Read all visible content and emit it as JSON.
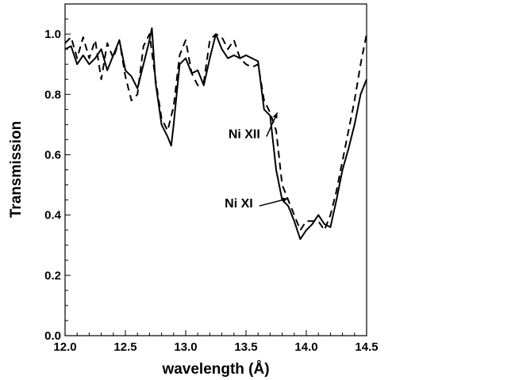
{
  "chart_data": {
    "type": "line",
    "xlabel": "wavelength (Å)",
    "ylabel": "Transmission",
    "xlim": [
      12.0,
      14.5
    ],
    "ylim": [
      0.0,
      1.1
    ],
    "x_ticks": [
      12.0,
      12.5,
      13.0,
      13.5,
      14.0,
      14.5
    ],
    "x_tick_labels": [
      "12.0",
      "12.5",
      "13.0",
      "13.5",
      "14.0",
      "14.5"
    ],
    "y_ticks": [
      0.0,
      0.2,
      0.4,
      0.6,
      0.8,
      1.0
    ],
    "y_tick_labels": [
      "0.0",
      "0.2",
      "0.4",
      "0.6",
      "0.8",
      "1.0"
    ],
    "grid": false,
    "legend": "none",
    "series": [
      {
        "style": "solid",
        "color": "#000000",
        "x": [
          12.0,
          12.05,
          12.1,
          12.15,
          12.2,
          12.25,
          12.3,
          12.35,
          12.4,
          12.45,
          12.5,
          12.55,
          12.6,
          12.65,
          12.7,
          12.72,
          12.75,
          12.8,
          12.85,
          12.88,
          12.9,
          12.95,
          13.0,
          13.05,
          13.1,
          13.15,
          13.2,
          13.25,
          13.3,
          13.35,
          13.4,
          13.45,
          13.5,
          13.55,
          13.6,
          13.65,
          13.7,
          13.75,
          13.8,
          13.85,
          13.9,
          13.95,
          14.0,
          14.05,
          14.1,
          14.15,
          14.2,
          14.25,
          14.3,
          14.35,
          14.4,
          14.45,
          14.5
        ],
        "y": [
          0.95,
          0.96,
          0.9,
          0.93,
          0.9,
          0.92,
          0.95,
          0.88,
          0.93,
          0.98,
          0.88,
          0.86,
          0.82,
          0.9,
          0.98,
          1.02,
          0.84,
          0.7,
          0.66,
          0.63,
          0.7,
          0.9,
          0.92,
          0.87,
          0.88,
          0.83,
          0.92,
          1.0,
          0.95,
          0.92,
          0.93,
          0.92,
          0.93,
          0.92,
          0.91,
          0.75,
          0.73,
          0.55,
          0.45,
          0.43,
          0.38,
          0.32,
          0.35,
          0.37,
          0.4,
          0.37,
          0.36,
          0.45,
          0.55,
          0.62,
          0.7,
          0.8,
          0.85
        ]
      },
      {
        "style": "dashed",
        "color": "#000000",
        "x": [
          12.0,
          12.05,
          12.1,
          12.15,
          12.2,
          12.25,
          12.3,
          12.35,
          12.4,
          12.45,
          12.5,
          12.55,
          12.6,
          12.65,
          12.7,
          12.75,
          12.8,
          12.85,
          12.9,
          12.95,
          13.0,
          13.05,
          13.1,
          13.15,
          13.2,
          13.25,
          13.3,
          13.35,
          13.4,
          13.45,
          13.5,
          13.55,
          13.6,
          13.65,
          13.7,
          13.75,
          13.8,
          13.85,
          13.9,
          13.95,
          14.0,
          14.05,
          14.1,
          14.15,
          14.2,
          14.25,
          14.3,
          14.35,
          14.4,
          14.45,
          14.5
        ],
        "y": [
          0.97,
          0.99,
          0.92,
          0.99,
          0.92,
          0.98,
          0.85,
          0.97,
          0.92,
          0.98,
          0.86,
          0.78,
          0.8,
          0.96,
          1.0,
          0.85,
          0.72,
          0.68,
          0.76,
          0.93,
          0.98,
          0.87,
          0.83,
          0.84,
          0.98,
          1.0,
          0.99,
          0.95,
          0.98,
          0.92,
          0.9,
          0.89,
          0.9,
          0.78,
          0.74,
          0.68,
          0.5,
          0.45,
          0.4,
          0.35,
          0.38,
          0.38,
          0.38,
          0.35,
          0.4,
          0.48,
          0.58,
          0.68,
          0.78,
          0.9,
          1.0
        ]
      }
    ],
    "annotations": [
      {
        "text": "Ni XII",
        "x_tail": 13.67,
        "y_tail": 0.66,
        "x_head": 13.76,
        "y_head": 0.74
      },
      {
        "text": "Ni XI",
        "x_tail": 13.61,
        "y_tail": 0.43,
        "x_head": 13.85,
        "y_head": 0.455
      }
    ]
  }
}
